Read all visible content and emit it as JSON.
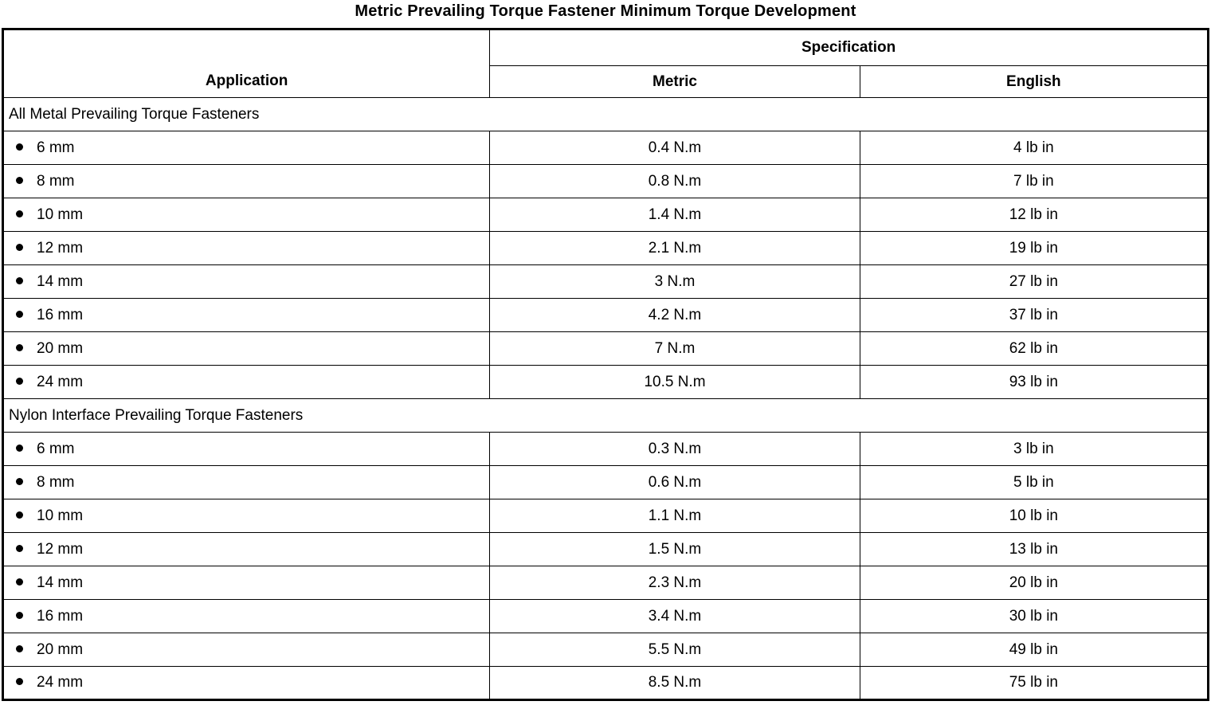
{
  "page": {
    "title": "Metric Prevailing Torque Fastener Minimum Torque Development"
  },
  "table": {
    "headers": {
      "application": "Application",
      "specification": "Specification",
      "metric": "Metric",
      "english": "English"
    },
    "sections": [
      {
        "label": "All Metal Prevailing Torque Fasteners",
        "rows": [
          {
            "application": "6 mm",
            "metric": "0.4 N.m",
            "english": "4 lb in"
          },
          {
            "application": "8 mm",
            "metric": "0.8 N.m",
            "english": "7 lb in"
          },
          {
            "application": "10 mm",
            "metric": "1.4 N.m",
            "english": "12 lb in"
          },
          {
            "application": "12 mm",
            "metric": "2.1 N.m",
            "english": "19 lb in"
          },
          {
            "application": "14 mm",
            "metric": "3 N.m",
            "english": "27 lb in"
          },
          {
            "application": "16 mm",
            "metric": "4.2 N.m",
            "english": "37 lb in"
          },
          {
            "application": "20 mm",
            "metric": "7 N.m",
            "english": "62 lb in"
          },
          {
            "application": "24 mm",
            "metric": "10.5 N.m",
            "english": "93 lb in"
          }
        ]
      },
      {
        "label": "Nylon Interface Prevailing Torque Fasteners",
        "rows": [
          {
            "application": "6 mm",
            "metric": "0.3 N.m",
            "english": "3 lb in"
          },
          {
            "application": "8 mm",
            "metric": "0.6 N.m",
            "english": "5 lb in"
          },
          {
            "application": "10 mm",
            "metric": "1.1 N.m",
            "english": "10 lb in"
          },
          {
            "application": "12 mm",
            "metric": "1.5 N.m",
            "english": "13 lb in"
          },
          {
            "application": "14 mm",
            "metric": "2.3 N.m",
            "english": "20 lb in"
          },
          {
            "application": "16 mm",
            "metric": "3.4 N.m",
            "english": "30 lb in"
          },
          {
            "application": "20 mm",
            "metric": "5.5 N.m",
            "english": "49 lb in"
          },
          {
            "application": "24 mm",
            "metric": "8.5 N.m",
            "english": "75 lb in"
          }
        ]
      }
    ]
  }
}
